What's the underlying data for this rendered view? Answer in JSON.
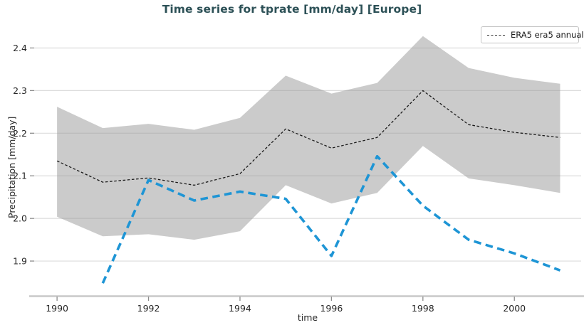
{
  "header": {
    "title": "Time series for tprate [mm/day] [Europe]",
    "title_color": "#2d5157"
  },
  "colors": {
    "grid": "#dcdcdc",
    "tick": "#8c8c8c",
    "spine": "#c9c9c9",
    "band": "#979797",
    "era5_line": "#1a1a1a",
    "blue_line": "#1e95d5",
    "text": "#262626"
  },
  "chart_data": {
    "type": "line",
    "title": "Time series for tprate [mm/day] [Europe]",
    "xlabel": "time",
    "ylabel": "Precipitation [mm/day]",
    "x_ticks": [
      "1990",
      "1992",
      "1994",
      "1996",
      "1998",
      "2000"
    ],
    "x_tick_values": [
      1990,
      1992,
      1994,
      1996,
      1998,
      2000
    ],
    "y_ticks": [
      "1.9",
      "2.0",
      "2.1",
      "2.2",
      "2.3",
      "2.4"
    ],
    "y_tick_values": [
      1.9,
      2.0,
      2.1,
      2.2,
      2.3,
      2.4
    ],
    "xlim": [
      1989.5,
      2001.46
    ],
    "ylim": [
      1.82,
      2.4425
    ],
    "grid": true,
    "legend_position": "upper-right",
    "series": [
      {
        "name": "ERA5 era5 annual",
        "color": "#1a1a1a",
        "line_style": "dashed",
        "dash": "3.6 2.6",
        "width": 1.3,
        "x": [
          1990,
          1991,
          1992,
          1993,
          1994,
          1995,
          1996,
          1997,
          1998,
          1999,
          2000,
          2001
        ],
        "values": [
          2.135,
          2.085,
          2.095,
          2.078,
          2.105,
          2.21,
          2.165,
          2.19,
          2.3,
          2.22,
          2.202,
          2.19
        ],
        "band": {
          "color": "#979797",
          "opacity": 0.5,
          "upper": [
            2.262,
            2.212,
            2.222,
            2.208,
            2.236,
            2.335,
            2.293,
            2.318,
            2.428,
            2.353,
            2.33,
            2.316
          ],
          "lower": [
            2.004,
            1.958,
            1.963,
            1.95,
            1.97,
            2.078,
            2.035,
            2.06,
            2.17,
            2.094,
            2.078,
            2.06
          ]
        }
      },
      {
        "name": "",
        "color": "#1e95d5",
        "line_style": "dashed",
        "dash": "10.5 6.5",
        "width": 3.6,
        "x": [
          1991,
          1992,
          1993,
          1994,
          1995,
          1996,
          1997,
          1998,
          1999,
          2000,
          2001
        ],
        "values": [
          1.848,
          2.09,
          2.042,
          2.063,
          2.046,
          1.912,
          2.146,
          2.03,
          1.95,
          1.918,
          1.878
        ]
      }
    ]
  }
}
